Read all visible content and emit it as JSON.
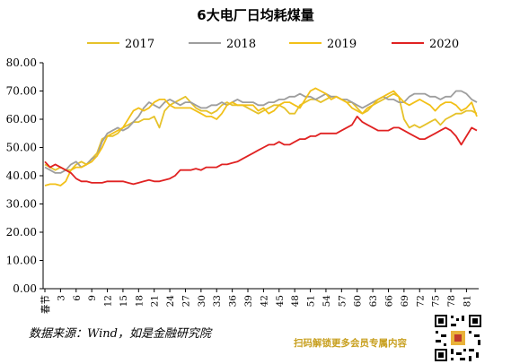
{
  "chart_data": {
    "type": "line",
    "title": "6大电厂日均耗煤量",
    "ylim": [
      0,
      80
    ],
    "yticks": [
      "0.00",
      "10.00",
      "20.00",
      "30.00",
      "40.00",
      "50.00",
      "60.00",
      "70.00",
      "80.00"
    ],
    "x": [
      "春节",
      1,
      2,
      3,
      4,
      5,
      6,
      7,
      8,
      9,
      10,
      11,
      12,
      13,
      14,
      15,
      16,
      17,
      18,
      19,
      20,
      21,
      22,
      23,
      24,
      25,
      26,
      27,
      28,
      29,
      30,
      31,
      32,
      33,
      34,
      35,
      36,
      37,
      38,
      39,
      40,
      41,
      42,
      43,
      44,
      45,
      46,
      47,
      48,
      49,
      50,
      51,
      52,
      53,
      54,
      55,
      56,
      57,
      58,
      59,
      60,
      61,
      62,
      63,
      64,
      65,
      66,
      67,
      68,
      69,
      70,
      71,
      72,
      73,
      74,
      75,
      76,
      77,
      78,
      79,
      80,
      81,
      82,
      83
    ],
    "xtick_labels": [
      "春节",
      "3",
      "6",
      "9",
      "12",
      "15",
      "18",
      "21",
      "24",
      "27",
      "30",
      "33",
      "36",
      "39",
      "42",
      "45",
      "48",
      "51",
      "54",
      "57",
      "60",
      "63",
      "66",
      "69",
      "72",
      "75",
      "78",
      "81"
    ],
    "legend_position": "top",
    "grid": false,
    "series": [
      {
        "name": "2017",
        "color": "#e6c22a",
        "values": [
          44,
          43,
          42,
          43,
          42,
          42,
          44,
          45,
          44,
          46,
          48,
          53,
          54,
          54,
          55,
          57,
          58,
          59,
          59,
          60,
          60,
          61,
          57,
          63,
          65,
          66,
          67,
          68,
          66,
          64,
          63,
          63,
          62,
          63,
          65,
          66,
          65,
          65,
          65,
          64,
          63,
          62,
          63,
          64,
          65,
          65,
          64,
          62,
          62,
          65,
          66,
          67,
          67,
          66,
          67,
          68,
          68,
          67,
          66,
          66,
          64,
          62,
          63,
          65,
          66,
          67,
          68,
          69,
          68,
          60,
          57,
          58,
          57,
          58,
          59,
          60,
          58,
          60,
          61,
          62,
          62,
          63,
          63,
          62
        ]
      },
      {
        "name": "2018",
        "color": "#9e9e9e",
        "values": [
          43,
          42,
          41,
          41,
          42,
          44,
          45,
          43,
          44,
          46,
          47,
          52,
          55,
          56,
          57,
          56,
          57,
          59,
          61,
          64,
          66,
          65,
          64,
          66,
          67,
          66,
          65,
          66,
          66,
          65,
          64,
          64,
          65,
          65,
          66,
          65,
          66,
          67,
          66,
          66,
          66,
          65,
          65,
          66,
          66,
          67,
          67,
          68,
          68,
          69,
          68,
          68,
          67,
          68,
          69,
          68,
          68,
          67,
          67,
          66,
          65,
          64,
          65,
          66,
          67,
          68,
          67,
          67,
          66,
          66,
          68,
          69,
          69,
          69,
          68,
          68,
          67,
          68,
          68,
          70,
          70,
          69,
          67,
          66
        ]
      },
      {
        "name": "2019",
        "color": "#f2c018",
        "values": [
          36.5,
          37,
          37,
          36.5,
          38,
          42,
          43,
          43,
          44,
          45,
          47,
          50,
          54,
          55,
          56,
          57,
          60,
          63,
          64,
          63,
          64,
          66,
          67,
          67,
          65,
          64,
          64,
          64,
          64,
          63,
          62,
          61,
          61,
          60,
          62,
          65,
          66,
          65,
          65,
          65,
          65,
          63,
          64,
          62,
          63,
          65,
          66,
          66,
          65,
          64,
          67,
          70,
          71,
          70,
          69,
          67,
          68,
          67,
          66,
          64,
          63,
          62,
          64,
          65,
          67,
          68,
          69,
          70,
          68,
          66,
          65,
          66,
          67,
          66,
          65,
          63,
          65,
          66,
          66,
          65,
          63,
          64,
          66,
          61
        ]
      },
      {
        "name": "2020",
        "color": "#e02222",
        "values": [
          45,
          43,
          44,
          43,
          42,
          41,
          39,
          38,
          38,
          37.5,
          37.5,
          37.5,
          38,
          38,
          38,
          38,
          37.5,
          37,
          37.5,
          38,
          38.5,
          38,
          38,
          38.5,
          39,
          40,
          42,
          42,
          42,
          42.5,
          42,
          43,
          43,
          43,
          44,
          44,
          44.5,
          45,
          46,
          47,
          48,
          49,
          50,
          51,
          51,
          52,
          51,
          51,
          52,
          53,
          53,
          54,
          54,
          55,
          55,
          55,
          55,
          56,
          57,
          58,
          61,
          59,
          58,
          57,
          56,
          56,
          56,
          57,
          57,
          56,
          55,
          54,
          53,
          53,
          54,
          55,
          56,
          57,
          56,
          54,
          51,
          54,
          57,
          56
        ]
      }
    ]
  },
  "footer": {
    "source": "数据来源：Wind，如是金融研究院",
    "promo": "扫码解锁更多会员专属内容"
  }
}
